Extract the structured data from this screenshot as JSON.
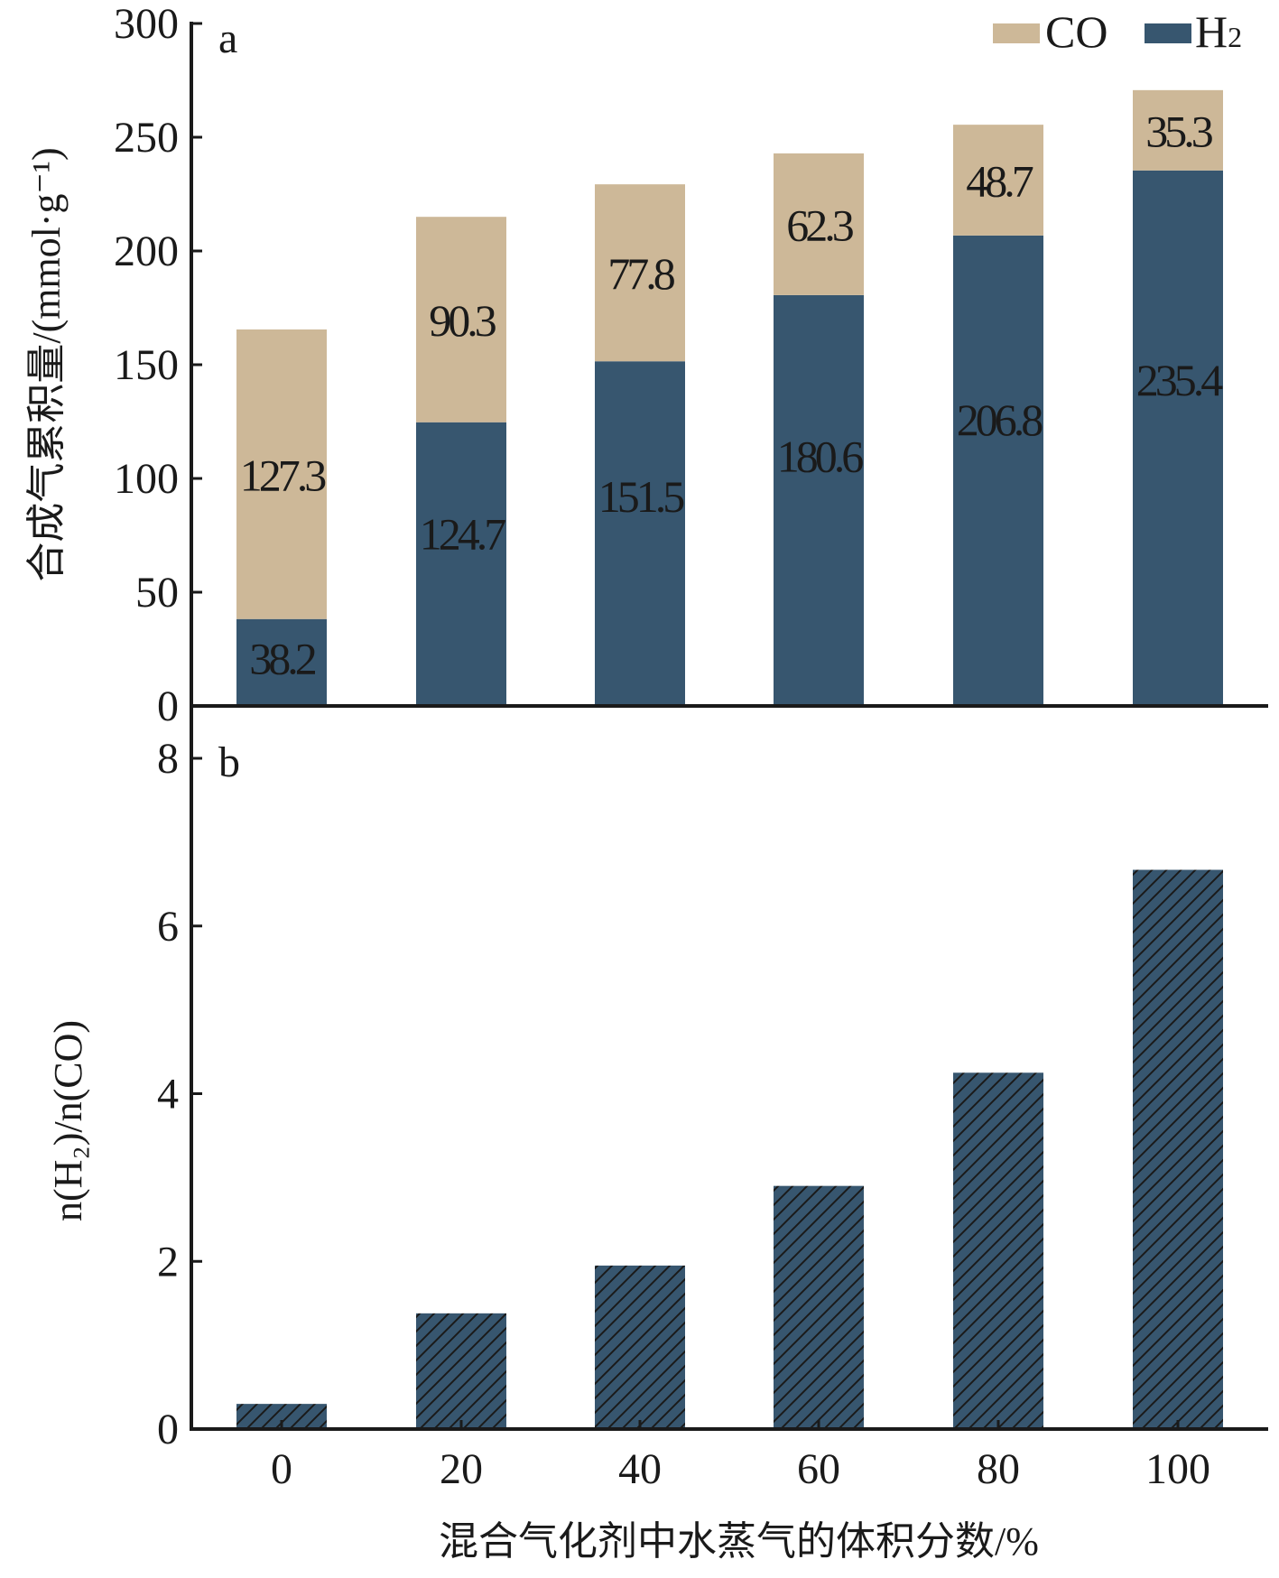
{
  "colors": {
    "co": "#cdb898",
    "h2": "#37566f",
    "axis": "#1a1a1a",
    "hatch": "#1a1a1a"
  },
  "legend": [
    {
      "key": "co",
      "label": "CO",
      "sub": ""
    },
    {
      "key": "h2",
      "label": "H",
      "sub": "2"
    }
  ],
  "x_axis": {
    "title": "混合气化剂中水蒸气的体积分数/%",
    "categories": [
      "0",
      "20",
      "40",
      "60",
      "80",
      "100"
    ]
  },
  "chart_data": [
    {
      "type": "bar",
      "stacked": true,
      "panel_label": "a",
      "ylabel": "合成气累积量/(mmol·g⁻¹)",
      "ylim": [
        0,
        300
      ],
      "yticks": [
        0,
        50,
        100,
        150,
        200,
        250,
        300
      ],
      "categories": [
        "0",
        "20",
        "40",
        "60",
        "80",
        "100"
      ],
      "series": [
        {
          "name": "H₂",
          "key": "h2",
          "values": [
            38.2,
            124.7,
            151.5,
            180.6,
            206.8,
            235.4
          ],
          "labels": [
            "38.2",
            "124.7",
            "151.5",
            "180.6",
            "206.8",
            "235.4"
          ]
        },
        {
          "name": "CO",
          "key": "co",
          "values": [
            127.3,
            90.3,
            77.8,
            62.3,
            48.7,
            35.3
          ],
          "labels": [
            "127.3",
            "90.3",
            "77.8",
            "62.3",
            "48.7",
            "35.3"
          ]
        }
      ]
    },
    {
      "type": "bar",
      "panel_label": "b",
      "ylabel": "n(H₂)/n(CO)",
      "ylim": [
        0,
        8
      ],
      "yticks": [
        0,
        2,
        4,
        6,
        8
      ],
      "categories": [
        "0",
        "20",
        "40",
        "60",
        "80",
        "100"
      ],
      "values": [
        0.3,
        1.38,
        1.95,
        2.9,
        4.25,
        6.67
      ]
    }
  ]
}
